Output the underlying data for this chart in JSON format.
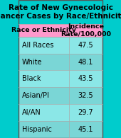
{
  "title": "Rate of New Gynecologic\nCancer Cases by Race/Ethnicity",
  "title_bg": "#00cccc",
  "header_bg": "#ff99cc",
  "header_col1": "Race or Ethnicity",
  "header_col2": "Incidence\nRate/100,000",
  "rows": [
    [
      "All Races",
      "47.5"
    ],
    [
      "White",
      "48.1"
    ],
    [
      "Black",
      "43.5"
    ],
    [
      "Asian/PI",
      "32.5"
    ],
    [
      "AI/AN",
      "29.7"
    ],
    [
      "Hispanic",
      "45.1"
    ]
  ],
  "figsize": [
    1.7,
    1.95
  ],
  "dpi": 100,
  "title_fontsize": 7.5,
  "header_fontsize": 6.8,
  "cell_fontsize": 7.0,
  "col_split": 0.6
}
